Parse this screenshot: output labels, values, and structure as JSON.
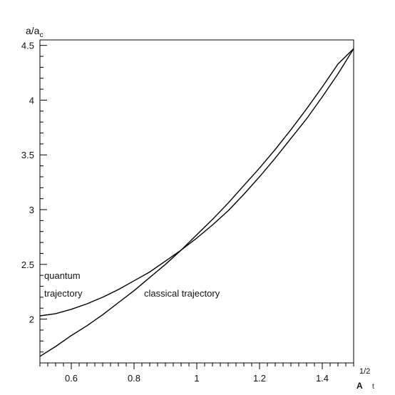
{
  "chart_data": {
    "type": "line",
    "ylabel": "a/a",
    "ylabel_sub": "c",
    "xlabel_sup": "1/2",
    "xlabel": "A",
    "xlabel_sub": "t",
    "xlim": [
      0.5,
      1.5
    ],
    "ylim": [
      1.6,
      4.55
    ],
    "xticks": [
      0.6,
      0.8,
      1,
      1.2,
      1.4
    ],
    "yticks": [
      2,
      2.5,
      3,
      3.5,
      4,
      4.5
    ],
    "grid": false,
    "legend": "none",
    "annotations": [
      {
        "text": "quantum",
        "series": "quantum"
      },
      {
        "text": "trajectory",
        "series": "quantum"
      },
      {
        "text": "classical trajectory",
        "series": "classical"
      }
    ],
    "series": [
      {
        "key": "quantum",
        "x": [
          0.5,
          0.55,
          0.6,
          0.65,
          0.7,
          0.75,
          0.8,
          0.85,
          0.9,
          0.95,
          1.0,
          1.05,
          1.1,
          1.15,
          1.2,
          1.25,
          1.3,
          1.35,
          1.4,
          1.45,
          1.5
        ],
        "y": [
          2.03,
          2.05,
          2.09,
          2.14,
          2.2,
          2.27,
          2.35,
          2.43,
          2.53,
          2.63,
          2.74,
          2.86,
          2.99,
          3.14,
          3.3,
          3.47,
          3.65,
          3.83,
          4.03,
          4.24,
          4.47
        ]
      },
      {
        "key": "classical",
        "x": [
          0.5,
          0.55,
          0.6,
          0.65,
          0.7,
          0.75,
          0.8,
          0.85,
          0.9,
          0.95,
          1.0,
          1.05,
          1.1,
          1.15,
          1.2,
          1.25,
          1.3,
          1.35,
          1.4,
          1.45,
          1.5
        ],
        "y": [
          1.66,
          1.75,
          1.85,
          1.94,
          2.04,
          2.15,
          2.26,
          2.38,
          2.5,
          2.63,
          2.77,
          2.91,
          3.06,
          3.22,
          3.38,
          3.55,
          3.73,
          3.92,
          4.12,
          4.33,
          4.47
        ]
      }
    ],
    "line_color": "#000000"
  }
}
